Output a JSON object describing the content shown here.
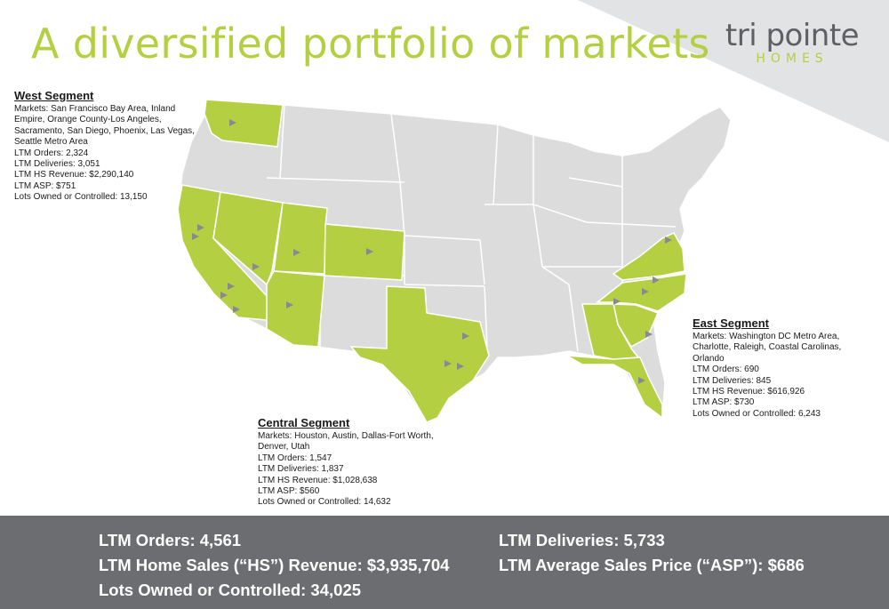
{
  "header": {
    "title": "A diversified portfolio of markets",
    "logo_top": "tri pointe",
    "logo_bottom": "HOMES"
  },
  "segments": {
    "west": {
      "heading": "West Segment",
      "lines": [
        "Markets: San Francisco Bay Area, Inland",
        "Empire, Orange County-Los Angeles,",
        "Sacramento, San Diego, Phoenix, Las Vegas,",
        "Seattle Metro Area",
        "LTM Orders: 2,324",
        "LTM Deliveries: 3,051",
        "LTM HS Revenue: $2,290,140",
        "LTM ASP: $751",
        "Lots Owned or Controlled: 13,150"
      ]
    },
    "central": {
      "heading": "Central Segment",
      "lines": [
        "Markets: Houston, Austin, Dallas-Fort Worth,",
        "Denver, Utah",
        "LTM Orders: 1,547",
        "LTM Deliveries: 1,837",
        "LTM HS Revenue: $1,028,638",
        "LTM ASP: $560",
        "Lots Owned or Controlled: 14,632"
      ]
    },
    "east": {
      "heading": "East Segment",
      "lines": [
        "Markets: Washington DC Metro Area,",
        "Charlotte, Raleigh, Coastal Carolinas,",
        "Orlando",
        "LTM Orders: 690",
        "LTM Deliveries: 845",
        "LTM HS Revenue: $616,926",
        "LTM ASP: $730",
        "Lots Owned or Controlled: 6,243"
      ]
    }
  },
  "totals": {
    "orders": "LTM Orders: 4,561",
    "revenue": "LTM Home Sales (“HS”) Revenue: $3,935,704",
    "lots": "Lots Owned or Controlled: 34,025",
    "deliveries": "LTM Deliveries: 5,733",
    "asp": "LTM Average Sales Price (“ASP”): $686"
  },
  "colors": {
    "accent_green": "#b5cf42",
    "state_gray": "#dcdcdc",
    "border_gray": "#ffffff",
    "bar_gray": "#6b6d70",
    "marker_gray": "#8a8a8a"
  },
  "icons": {
    "market_marker": "triangle-right-icon"
  }
}
